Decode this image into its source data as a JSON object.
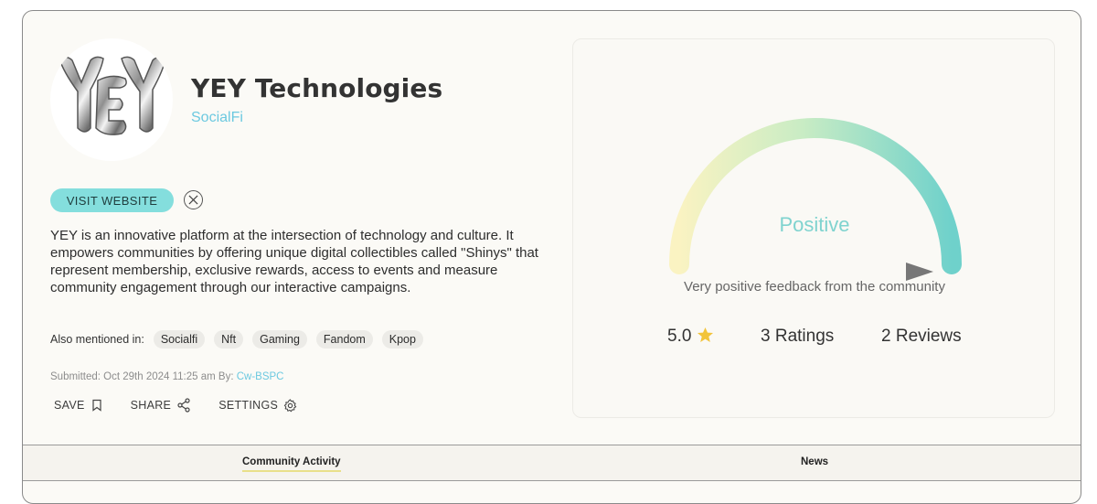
{
  "project": {
    "name": "YEY Technologies",
    "category": "SocialFi",
    "logo_text": "YEY"
  },
  "buttons": {
    "visit_website": "VISIT WEBSITE",
    "x_icon": "x-twitter-icon"
  },
  "description": "YEY is an innovative platform at the intersection of technology and culture. It empowers communities by offering unique digital collectibles called \"Shinys\" that represent membership, exclusive rewards, access to events and measure community engagement through our interactive campaigns.",
  "mentions": {
    "label": "Also mentioned in:",
    "tags": [
      "Socialfi",
      "Nft",
      "Gaming",
      "Fandom",
      "Kpop"
    ]
  },
  "submitted": {
    "prefix": "Submitted: Oct 29th 2024 11:25 am By:",
    "user": "Cw-BSPC"
  },
  "actions": {
    "save": "SAVE",
    "share": "SHARE",
    "settings": "SETTINGS"
  },
  "sentiment": {
    "label": "Positive",
    "description": "Very positive feedback from the community",
    "level": 1.0,
    "rating": "5.0",
    "ratings": "3 Ratings",
    "reviews": "2 Reviews",
    "colors": {
      "start": "#faf3c2",
      "mid": "#c9ecc4",
      "end": "#6fd1cb",
      "star": "#f2c43a"
    }
  },
  "tabs": [
    "Community Activity",
    "News"
  ]
}
